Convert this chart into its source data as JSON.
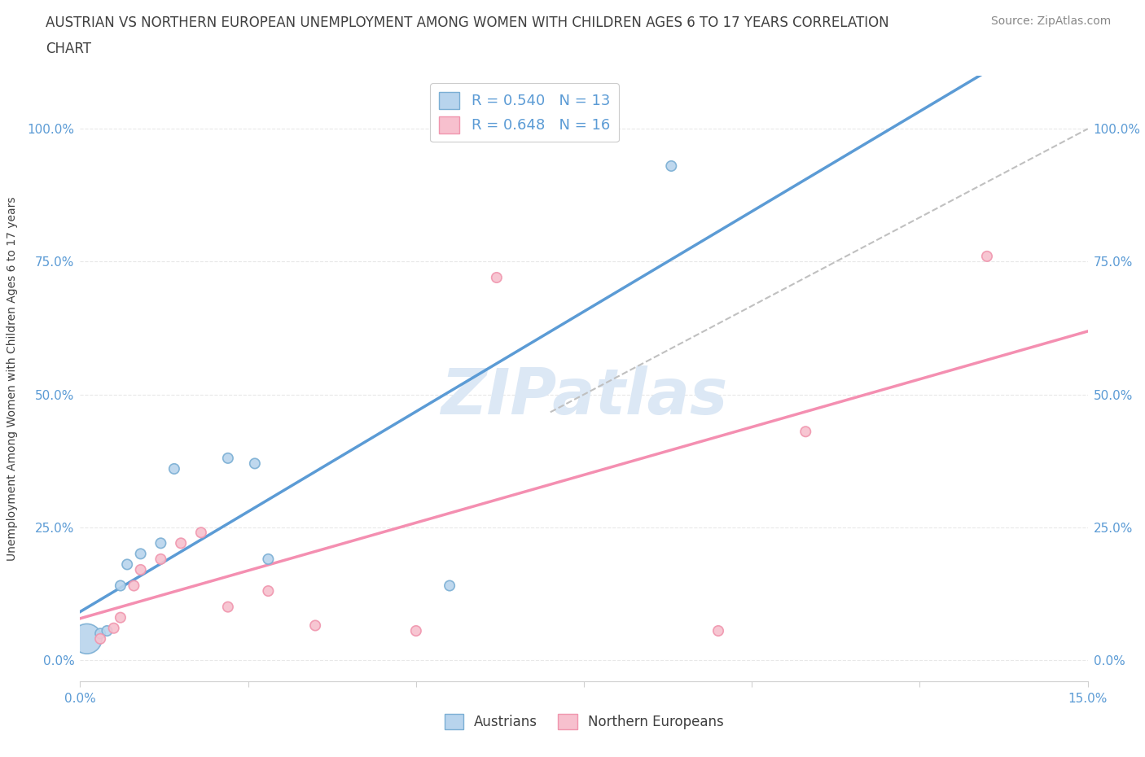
{
  "title_line1": "AUSTRIAN VS NORTHERN EUROPEAN UNEMPLOYMENT AMONG WOMEN WITH CHILDREN AGES 6 TO 17 YEARS CORRELATION",
  "title_line2": "CHART",
  "source_text": "Source: ZipAtlas.com",
  "ylabel": "Unemployment Among Women with Children Ages 6 to 17 years",
  "x_min": 0.0,
  "x_max": 0.15,
  "y_min": -0.04,
  "y_max": 1.1,
  "y_ticks": [
    0.0,
    0.25,
    0.5,
    0.75,
    1.0
  ],
  "y_tick_labels": [
    "0.0%",
    "25.0%",
    "50.0%",
    "75.0%",
    "100.0%"
  ],
  "x_ticks": [
    0.0,
    0.025,
    0.05,
    0.075,
    0.1,
    0.125,
    0.15
  ],
  "x_tick_labels": [
    "0.0%",
    "",
    "",
    "",
    "",
    "",
    "15.0%"
  ],
  "austrians_x": [
    0.001,
    0.003,
    0.004,
    0.006,
    0.007,
    0.009,
    0.012,
    0.014,
    0.022,
    0.026,
    0.028,
    0.055,
    0.088
  ],
  "austrians_y": [
    0.04,
    0.05,
    0.055,
    0.14,
    0.18,
    0.2,
    0.22,
    0.36,
    0.38,
    0.37,
    0.19,
    0.14,
    0.93
  ],
  "austrians_size": [
    700,
    80,
    80,
    80,
    80,
    80,
    80,
    80,
    80,
    80,
    80,
    80,
    80
  ],
  "northern_x": [
    0.003,
    0.005,
    0.006,
    0.008,
    0.009,
    0.012,
    0.015,
    0.018,
    0.022,
    0.028,
    0.035,
    0.05,
    0.062,
    0.095,
    0.108,
    0.135
  ],
  "northern_y": [
    0.04,
    0.06,
    0.08,
    0.14,
    0.17,
    0.19,
    0.22,
    0.24,
    0.1,
    0.13,
    0.065,
    0.055,
    0.72,
    0.055,
    0.43,
    0.76
  ],
  "northern_size": [
    80,
    80,
    80,
    80,
    80,
    80,
    80,
    80,
    80,
    80,
    80,
    80,
    80,
    80,
    80,
    80
  ],
  "R_austrians": 0.54,
  "N_austrians": 13,
  "R_northern": 0.648,
  "N_northern": 16,
  "blue_scatter_color": "#b8d4ed",
  "blue_scatter_edge": "#7bafd4",
  "pink_scatter_color": "#f7c0ce",
  "pink_scatter_edge": "#f096ae",
  "blue_line_color": "#5b9bd5",
  "pink_line_color": "#f48fb1",
  "diagonal_color": "#c0c0c0",
  "watermark": "ZIPatlas",
  "watermark_color": "#dce8f5",
  "background_color": "#ffffff",
  "grid_color": "#e8e8e8",
  "tick_label_color": "#5b9bd5",
  "title_color": "#404040",
  "source_color": "#888888",
  "ylabel_color": "#404040",
  "legend_label_color": "#5b9bd5",
  "bottom_legend_color": "#404040"
}
